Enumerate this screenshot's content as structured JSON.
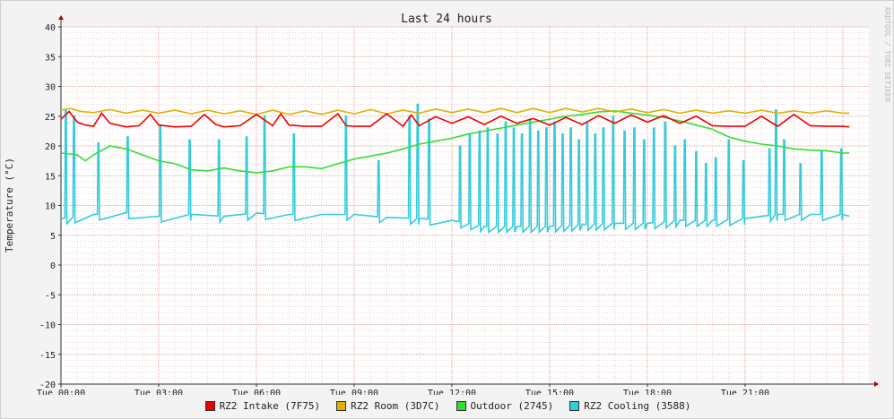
{
  "chart_data": {
    "type": "line",
    "title": "Last 24 hours",
    "ylabel": "Temperature (°C)",
    "watermark": "RRDTOOL / TOBI OETIKER",
    "ylim": [
      -20,
      40
    ],
    "yticks": [
      40,
      35,
      30,
      25,
      20,
      15,
      10,
      5,
      0,
      -5,
      -10,
      -15,
      -20
    ],
    "x_range_hours": [
      0,
      24.8
    ],
    "xticks": [
      {
        "h": 0,
        "label": "Tue 00:00"
      },
      {
        "h": 3,
        "label": "Tue 03:00"
      },
      {
        "h": 6,
        "label": "Tue 06:00"
      },
      {
        "h": 9,
        "label": "Tue 09:00"
      },
      {
        "h": 12,
        "label": "Tue 12:00"
      },
      {
        "h": 15,
        "label": "Tue 15:00"
      },
      {
        "h": 18,
        "label": "Tue 18:00"
      },
      {
        "h": 21,
        "label": "Tue 21:00"
      }
    ],
    "grid": true,
    "legend_position": "bottom",
    "series": [
      {
        "name": "RZ2 Intake (7F75)",
        "color": "#ee0000",
        "x": [
          0,
          0.25,
          0.5,
          0.75,
          1,
          1.25,
          1.5,
          2,
          2.4,
          2.75,
          3,
          3.5,
          4,
          4.4,
          4.75,
          5,
          5.5,
          6,
          6.5,
          6.75,
          7,
          7.5,
          8,
          8.5,
          8.75,
          9,
          9.5,
          10,
          10.5,
          10.75,
          11,
          11.5,
          12,
          12.5,
          13,
          13.5,
          14,
          14.5,
          15,
          15.5,
          16,
          16.5,
          17,
          17.5,
          18,
          18.5,
          19,
          19.5,
          20,
          20.5,
          21,
          21.5,
          22,
          22.5,
          23,
          23.5,
          24,
          24.2
        ],
        "values": [
          24.5,
          25.8,
          24,
          23.5,
          23.3,
          25.5,
          23.8,
          23.2,
          23.4,
          25.3,
          23.5,
          23.2,
          23.3,
          25.3,
          23.6,
          23.2,
          23.4,
          25.3,
          23.4,
          25.4,
          23.5,
          23.3,
          23.3,
          25.4,
          23.4,
          23.3,
          23.3,
          25.4,
          23.3,
          25.2,
          23.4,
          24.9,
          23.8,
          24.9,
          23.6,
          25.0,
          23.8,
          24.6,
          23.5,
          24.8,
          23.6,
          25.1,
          23.8,
          25.2,
          24.0,
          25.1,
          23.8,
          25.0,
          23.4,
          23.3,
          23.3,
          25.0,
          23.3,
          25.3,
          23.4,
          23.3,
          23.3,
          23.2
        ]
      },
      {
        "name": "RZ2 Room (3D7C)",
        "color": "#e0b000",
        "x": [
          0,
          0.3,
          0.6,
          1,
          1.5,
          2,
          2.5,
          3,
          3.5,
          4,
          4.5,
          5,
          5.5,
          6,
          6.5,
          7,
          7.5,
          8,
          8.5,
          9,
          9.5,
          10,
          10.5,
          11,
          11.5,
          12,
          12.5,
          13,
          13.5,
          14,
          14.5,
          15,
          15.5,
          16,
          16.5,
          17,
          17.5,
          18,
          18.5,
          19,
          19.5,
          20,
          20.5,
          21,
          21.5,
          22,
          22.5,
          23,
          23.5,
          24,
          24.2
        ],
        "values": [
          26.0,
          26.3,
          25.8,
          25.6,
          26.1,
          25.5,
          26.0,
          25.5,
          26.0,
          25.4,
          26.0,
          25.4,
          25.9,
          25.3,
          26.0,
          25.3,
          25.9,
          25.3,
          26.0,
          25.4,
          26.1,
          25.4,
          26.0,
          25.5,
          26.2,
          25.6,
          26.2,
          25.6,
          26.3,
          25.6,
          26.3,
          25.6,
          26.3,
          25.7,
          26.3,
          25.7,
          26.2,
          25.6,
          26.1,
          25.5,
          26.0,
          25.5,
          25.9,
          25.5,
          26.0,
          25.5,
          25.9,
          25.5,
          25.9,
          25.5,
          25.5
        ]
      },
      {
        "name": "Outdoor (2745)",
        "color": "#33dd33",
        "x": [
          0,
          0.5,
          0.75,
          1,
          1.5,
          2,
          2.5,
          3,
          3.5,
          4,
          4.5,
          5,
          5.5,
          6,
          6.5,
          7,
          7.5,
          8,
          8.5,
          9,
          9.5,
          10,
          10.5,
          11,
          11.5,
          12,
          12.5,
          13,
          13.5,
          14,
          14.5,
          15,
          15.5,
          16,
          16.5,
          17,
          17.5,
          18,
          18.5,
          19,
          19.5,
          20,
          20.5,
          21,
          21.5,
          22,
          22.5,
          23,
          23.5,
          24,
          24.2
        ],
        "values": [
          18.8,
          18.5,
          17.5,
          18.5,
          20.0,
          19.5,
          18.5,
          17.5,
          17.0,
          16.0,
          15.8,
          16.3,
          15.8,
          15.5,
          15.8,
          16.5,
          16.5,
          16.2,
          17.0,
          17.8,
          18.3,
          18.8,
          19.5,
          20.3,
          20.8,
          21.3,
          22.0,
          22.5,
          23.0,
          23.5,
          24.0,
          24.5,
          25.0,
          25.3,
          25.7,
          25.9,
          25.5,
          25.2,
          24.8,
          24.2,
          23.5,
          22.8,
          21.5,
          20.8,
          20.3,
          20.0,
          19.5,
          19.3,
          19.2,
          18.8,
          18.8
        ]
      },
      {
        "name": "RZ2 Cooling (3588)",
        "color": "#33ccdd",
        "base_x": [
          0,
          1,
          2,
          3,
          4,
          5,
          6,
          7,
          8,
          9,
          10,
          11,
          12,
          13,
          14,
          15,
          16,
          17,
          18,
          19,
          20,
          21,
          22,
          23,
          24,
          24.2
        ],
        "base_values": [
          7.8,
          8.5,
          8.8,
          8.2,
          8.5,
          8.2,
          8.7,
          8.5,
          8.5,
          8.5,
          8.0,
          7.8,
          7.5,
          6.5,
          6.5,
          6.5,
          6.8,
          7.0,
          7.0,
          7.5,
          7.5,
          7.8,
          8.5,
          8.5,
          8.5,
          8.2
        ],
        "spikes": [
          {
            "x": 0.15,
            "y": 26.0
          },
          {
            "x": 0.4,
            "y": 25.0
          },
          {
            "x": 1.15,
            "y": 20.5
          },
          {
            "x": 2.05,
            "y": 21.5
          },
          {
            "x": 3.05,
            "y": 23.5
          },
          {
            "x": 3.95,
            "y": 21.0
          },
          {
            "x": 4.85,
            "y": 21.0
          },
          {
            "x": 5.7,
            "y": 21.5
          },
          {
            "x": 6.25,
            "y": 25.0
          },
          {
            "x": 7.15,
            "y": 22.0
          },
          {
            "x": 8.75,
            "y": 25.0
          },
          {
            "x": 9.75,
            "y": 17.5
          },
          {
            "x": 10.7,
            "y": 25.0
          },
          {
            "x": 10.95,
            "y": 27.0
          },
          {
            "x": 11.3,
            "y": 24.5
          },
          {
            "x": 12.25,
            "y": 20.0
          },
          {
            "x": 12.55,
            "y": 22.0
          },
          {
            "x": 12.85,
            "y": 22.5
          },
          {
            "x": 13.1,
            "y": 23.0
          },
          {
            "x": 13.4,
            "y": 22.0
          },
          {
            "x": 13.65,
            "y": 24.0
          },
          {
            "x": 13.9,
            "y": 23.0
          },
          {
            "x": 14.15,
            "y": 22.0
          },
          {
            "x": 14.4,
            "y": 24.5
          },
          {
            "x": 14.65,
            "y": 22.5
          },
          {
            "x": 14.9,
            "y": 23.0
          },
          {
            "x": 15.15,
            "y": 24.0
          },
          {
            "x": 15.4,
            "y": 22.0
          },
          {
            "x": 15.65,
            "y": 23.0
          },
          {
            "x": 15.9,
            "y": 21.0
          },
          {
            "x": 16.15,
            "y": 24.0
          },
          {
            "x": 16.4,
            "y": 22.0
          },
          {
            "x": 16.65,
            "y": 23.0
          },
          {
            "x": 16.95,
            "y": 25.0
          },
          {
            "x": 17.3,
            "y": 22.5
          },
          {
            "x": 17.6,
            "y": 23.0
          },
          {
            "x": 17.9,
            "y": 21.0
          },
          {
            "x": 18.2,
            "y": 23.0
          },
          {
            "x": 18.55,
            "y": 24.0
          },
          {
            "x": 18.85,
            "y": 20.0
          },
          {
            "x": 19.15,
            "y": 21.0
          },
          {
            "x": 19.5,
            "y": 19.0
          },
          {
            "x": 19.8,
            "y": 17.0
          },
          {
            "x": 20.1,
            "y": 18.0
          },
          {
            "x": 20.5,
            "y": 21.0
          },
          {
            "x": 20.95,
            "y": 17.5
          },
          {
            "x": 21.75,
            "y": 19.5
          },
          {
            "x": 21.95,
            "y": 26.0
          },
          {
            "x": 22.2,
            "y": 21.0
          },
          {
            "x": 22.7,
            "y": 17.0
          },
          {
            "x": 23.35,
            "y": 19.0
          },
          {
            "x": 23.95,
            "y": 19.5
          }
        ]
      }
    ]
  }
}
